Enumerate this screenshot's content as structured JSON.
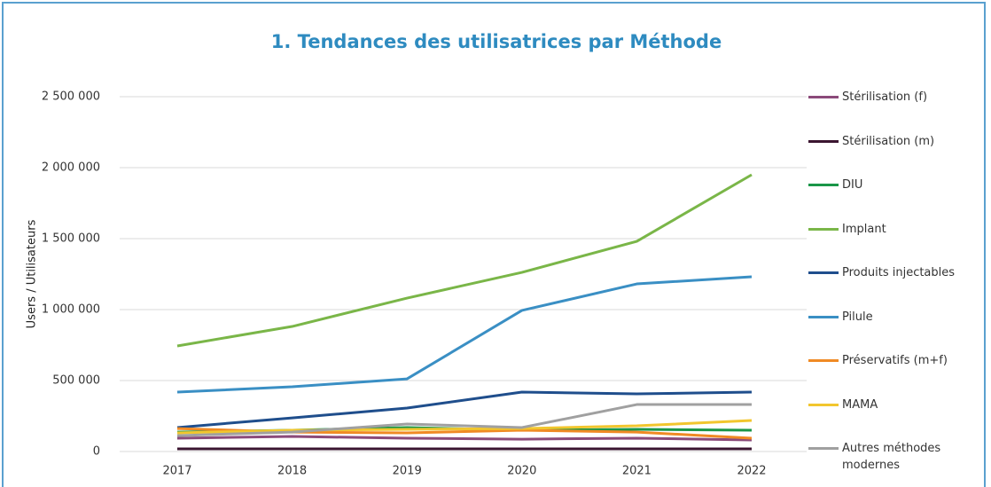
{
  "chart_data": {
    "type": "line",
    "title": "1. Tendances des utilisatrices par Méthode",
    "y_label": "Users / Utilisateurs",
    "categories": [
      "2017",
      "2018",
      "2019",
      "2020",
      "2021",
      "2022"
    ],
    "ylim": [
      0,
      2500000
    ],
    "yticks": [
      0,
      {
        "value": 500000,
        "label": "500 000"
      },
      {
        "value": 1000000,
        "label": "1 000 000"
      },
      {
        "value": 1500000,
        "label": "1 500 000"
      },
      {
        "value": 2000000,
        "label": "2 000 000"
      },
      {
        "value": 2500000,
        "label": "2 500 000"
      }
    ],
    "grid": true,
    "legend": "right",
    "series": [
      {
        "name": "Stérilisation (f)",
        "color": "#8b4a7a",
        "values": [
          94000,
          106000,
          94000,
          87000,
          94000,
          81000
        ]
      },
      {
        "name": "Stérilisation (m)",
        "color": "#3b1530",
        "values": [
          19000,
          19000,
          19000,
          19000,
          19000,
          19000
        ]
      },
      {
        "name": "DIU",
        "color": "#1a9648",
        "values": [
          137000,
          150000,
          169000,
          150000,
          156000,
          150000
        ]
      },
      {
        "name": "Implant",
        "color": "#7ab648",
        "values": [
          744000,
          881000,
          1081000,
          1262000,
          1481000,
          1950000
        ]
      },
      {
        "name": "Produits injectables",
        "color": "#1f4e8c",
        "values": [
          169000,
          237000,
          306000,
          419000,
          406000,
          419000
        ]
      },
      {
        "name": "Pilule",
        "color": "#3a8fc4",
        "values": [
          419000,
          456000,
          512000,
          994000,
          1181000,
          1231000
        ]
      },
      {
        "name": "Préservatifs (m+f)",
        "color": "#f08a24",
        "values": [
          162000,
          137000,
          131000,
          150000,
          137000,
          94000
        ]
      },
      {
        "name": "MAMA",
        "color": "#f2c62e",
        "values": [
          131000,
          150000,
          156000,
          162000,
          181000,
          219000
        ]
      },
      {
        "name": "Autres méthodes modernes",
        "color": "#a0a0a0",
        "values": [
          112000,
          137000,
          194000,
          169000,
          331000,
          331000
        ]
      }
    ]
  }
}
